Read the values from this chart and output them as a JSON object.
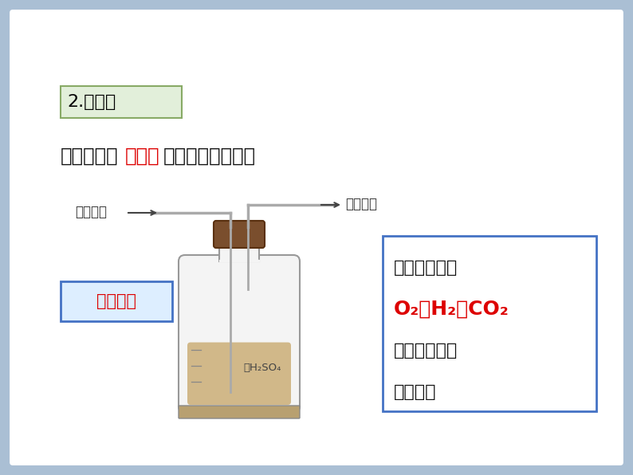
{
  "bg_outer": "#aabfd4",
  "bg_inner": "#ffffff",
  "title_box_text": "2.浓硫酸",
  "title_box_bg": "#e2efda",
  "title_box_border": "#88aa66",
  "title_text_color": "#000000",
  "line1_pre": "浓硫酸具有",
  "line1_red": "吸水性",
  "line1_post": "，可用作干燥剂。",
  "line1_color_normal": "#111111",
  "line1_color_red": "#dd0000",
  "label_moist": "潮湿气体",
  "label_dry": "干燥气体",
  "label_color": "#333333",
  "long_in_short_out_text": "长进短出",
  "long_in_short_out_color": "#dd0000",
  "long_in_short_out_bg": "#ddeeff",
  "long_in_short_out_border": "#4472c4",
  "info_box_border": "#4472c4",
  "info_box_line1": "浓硫酸可干燥",
  "info_box_line2": "O₂、H₂、CO₂",
  "info_box_line2_color": "#dd0000",
  "info_box_line3": "等不与其反应",
  "info_box_line4": "的气体。",
  "info_box_text_color": "#111111",
  "h2so4_label": "浓H₂SO₄",
  "fig_width": 7.94,
  "fig_height": 5.96,
  "dpi": 100
}
